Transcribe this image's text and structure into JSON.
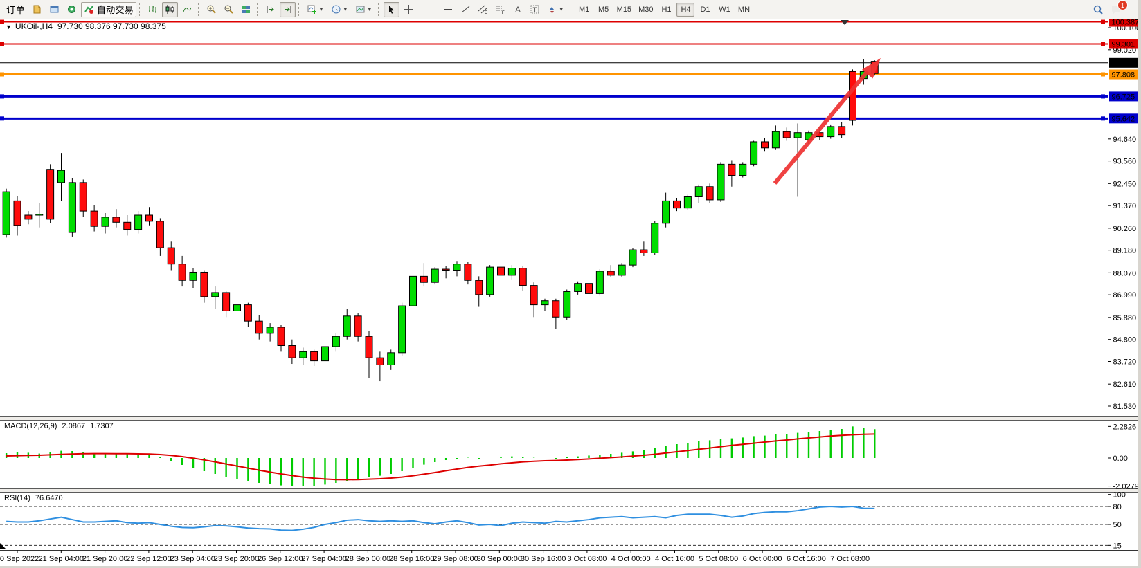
{
  "toolbar": {
    "order_label": "订单",
    "autotrade_label": "自动交易",
    "timeframes": [
      "M1",
      "M5",
      "M15",
      "M30",
      "H1",
      "H4",
      "D1",
      "W1",
      "MN"
    ],
    "active_timeframe": "H4",
    "notification_count": "1"
  },
  "chart": {
    "header": {
      "symbol": "UKOil-,H4",
      "ohlc": "97.730 98.376 97.730 98.375"
    },
    "price_ticks": [
      "100.100",
      "99.020",
      "94.640",
      "93.560",
      "92.450",
      "91.370",
      "90.260",
      "89.180",
      "88.070",
      "86.990",
      "85.880",
      "84.800",
      "83.720",
      "82.610",
      "81.530"
    ],
    "levels": [
      {
        "price": 100.387,
        "label": "100.387",
        "color": "#dd0000",
        "width": 2,
        "handles": true
      },
      {
        "price": 99.301,
        "label": "99.301",
        "color": "#dd0000",
        "width": 2,
        "handles": true
      },
      {
        "price": 98.375,
        "label": "98.375",
        "color": "#000000",
        "width": 1,
        "handles": false
      },
      {
        "price": 97.808,
        "label": "97.808",
        "color": "#ff9400",
        "width": 3,
        "handles": true
      },
      {
        "price": 96.725,
        "label": "96.725",
        "color": "#0000cc",
        "width": 3,
        "handles": true
      },
      {
        "price": 95.642,
        "label": "95.642",
        "color": "#0000cc",
        "width": 3,
        "handles": true
      }
    ],
    "time_labels": [
      "20 Sep 2022",
      "21 Sep 04:00",
      "21 Sep 20:00",
      "22 Sep 12:00",
      "23 Sep 04:00",
      "23 Sep 20:00",
      "26 Sep 12:00",
      "27 Sep 04:00",
      "28 Sep 00:00",
      "28 Sep 16:00",
      "29 Sep 08:00",
      "30 Sep 00:00",
      "30 Sep 16:00",
      "3 Oct 08:00",
      "4 Oct 00:00",
      "4 Oct 16:00",
      "5 Oct 08:00",
      "6 Oct 00:00",
      "6 Oct 16:00",
      "7 Oct 08:00"
    ]
  },
  "chart_data": {
    "type": "candlestick",
    "title": "UKOil- H4",
    "symbol": "UKOil-",
    "timeframe": "H4",
    "current_ohlc": {
      "open": 97.73,
      "high": 98.376,
      "low": 97.73,
      "close": 98.375
    },
    "y_range": [
      81.0,
      100.5
    ],
    "up_color": "#00dd00",
    "down_color": "#ff0c0c",
    "candle_format": [
      "time",
      "open",
      "high",
      "low",
      "close"
    ],
    "candles": [
      [
        "20 Sep 08:00",
        89.95,
        92.2,
        89.8,
        92.05
      ],
      [
        "20 Sep 12:00",
        91.6,
        91.85,
        89.9,
        90.4
      ],
      [
        "20 Sep 16:00",
        90.9,
        91.1,
        90.45,
        90.7
      ],
      [
        "20 Sep 20:00",
        90.9,
        91.5,
        90.3,
        90.95
      ],
      [
        "21 Sep 00:00",
        93.15,
        93.4,
        90.5,
        90.7
      ],
      [
        "21 Sep 04:00",
        92.5,
        93.95,
        91.6,
        93.1
      ],
      [
        "21 Sep 08:00",
        90.05,
        92.7,
        89.85,
        92.5
      ],
      [
        "21 Sep 12:00",
        92.5,
        92.65,
        90.8,
        91.1
      ],
      [
        "21 Sep 16:00",
        91.1,
        91.4,
        90.1,
        90.35
      ],
      [
        "21 Sep 20:00",
        90.35,
        91.0,
        90.0,
        90.8
      ],
      [
        "22 Sep 00:00",
        90.8,
        91.2,
        90.3,
        90.55
      ],
      [
        "22 Sep 04:00",
        90.55,
        90.9,
        89.9,
        90.2
      ],
      [
        "22 Sep 08:00",
        90.2,
        91.1,
        90.0,
        90.9
      ],
      [
        "22 Sep 12:00",
        90.9,
        91.3,
        90.4,
        90.6
      ],
      [
        "22 Sep 16:00",
        90.6,
        90.75,
        88.9,
        89.3
      ],
      [
        "22 Sep 20:00",
        89.3,
        89.6,
        88.2,
        88.5
      ],
      [
        "23 Sep 00:00",
        88.5,
        88.9,
        87.4,
        87.7
      ],
      [
        "23 Sep 04:00",
        87.7,
        88.3,
        87.3,
        88.1
      ],
      [
        "23 Sep 08:00",
        88.1,
        88.2,
        86.6,
        86.9
      ],
      [
        "23 Sep 12:00",
        86.9,
        87.4,
        86.3,
        87.1
      ],
      [
        "23 Sep 16:00",
        87.1,
        87.2,
        85.9,
        86.2
      ],
      [
        "23 Sep 20:00",
        86.2,
        86.8,
        85.6,
        86.5
      ],
      [
        "25 Sep 20:00",
        86.5,
        86.6,
        85.4,
        85.7
      ],
      [
        "26 Sep 00:00",
        85.7,
        86.0,
        84.8,
        85.1
      ],
      [
        "26 Sep 04:00",
        85.1,
        85.6,
        84.7,
        85.4
      ],
      [
        "26 Sep 08:00",
        85.4,
        85.5,
        84.2,
        84.5
      ],
      [
        "26 Sep 12:00",
        84.5,
        84.8,
        83.6,
        83.9
      ],
      [
        "26 Sep 16:00",
        83.9,
        84.4,
        83.55,
        84.2
      ],
      [
        "26 Sep 20:00",
        84.2,
        84.3,
        83.5,
        83.75
      ],
      [
        "27 Sep 00:00",
        83.75,
        84.6,
        83.6,
        84.45
      ],
      [
        "27 Sep 04:00",
        84.45,
        85.1,
        84.2,
        84.95
      ],
      [
        "27 Sep 08:00",
        84.95,
        86.3,
        84.8,
        85.95
      ],
      [
        "27 Sep 12:00",
        85.95,
        86.1,
        84.7,
        84.95
      ],
      [
        "27 Sep 16:00",
        84.95,
        85.2,
        82.9,
        83.9
      ],
      [
        "27 Sep 20:00",
        83.9,
        84.2,
        82.75,
        83.55
      ],
      [
        "28 Sep 00:00",
        83.55,
        84.3,
        83.3,
        84.15
      ],
      [
        "28 Sep 04:00",
        84.15,
        86.6,
        84.0,
        86.45
      ],
      [
        "28 Sep 08:00",
        86.45,
        88.0,
        86.3,
        87.9
      ],
      [
        "28 Sep 12:00",
        87.9,
        88.55,
        87.4,
        87.6
      ],
      [
        "28 Sep 16:00",
        87.6,
        88.35,
        87.5,
        88.25
      ],
      [
        "28 Sep 20:00",
        88.25,
        88.4,
        87.8,
        88.2
      ],
      [
        "29 Sep 00:00",
        88.2,
        88.65,
        87.9,
        88.5
      ],
      [
        "29 Sep 04:00",
        88.5,
        88.6,
        87.5,
        87.7
      ],
      [
        "29 Sep 08:00",
        87.7,
        87.9,
        86.4,
        87.0
      ],
      [
        "29 Sep 12:00",
        87.0,
        88.45,
        86.9,
        88.35
      ],
      [
        "29 Sep 16:00",
        88.35,
        88.5,
        87.7,
        87.95
      ],
      [
        "29 Sep 20:00",
        87.95,
        88.45,
        87.75,
        88.3
      ],
      [
        "30 Sep 00:00",
        88.3,
        88.4,
        87.2,
        87.45
      ],
      [
        "30 Sep 04:00",
        87.45,
        87.6,
        85.9,
        86.5
      ],
      [
        "30 Sep 08:00",
        86.5,
        86.8,
        86.2,
        86.7
      ],
      [
        "30 Sep 12:00",
        86.7,
        86.8,
        85.3,
        85.9
      ],
      [
        "30 Sep 16:00",
        85.9,
        87.25,
        85.75,
        87.15
      ],
      [
        "30 Sep 20:00",
        87.15,
        87.65,
        87.0,
        87.55
      ],
      [
        "2 Oct 20:00",
        87.55,
        87.6,
        86.9,
        87.05
      ],
      [
        "3 Oct 00:00",
        87.05,
        88.25,
        86.95,
        88.15
      ],
      [
        "3 Oct 04:00",
        88.15,
        88.45,
        87.85,
        87.95
      ],
      [
        "3 Oct 08:00",
        87.95,
        88.55,
        87.85,
        88.45
      ],
      [
        "3 Oct 12:00",
        88.45,
        89.3,
        88.35,
        89.2
      ],
      [
        "3 Oct 16:00",
        89.2,
        89.6,
        88.9,
        89.05
      ],
      [
        "3 Oct 20:00",
        89.05,
        90.6,
        88.95,
        90.5
      ],
      [
        "4 Oct 00:00",
        90.5,
        92.0,
        90.3,
        91.6
      ],
      [
        "4 Oct 04:00",
        91.6,
        91.75,
        91.1,
        91.25
      ],
      [
        "4 Oct 08:00",
        91.25,
        91.9,
        91.15,
        91.8
      ],
      [
        "4 Oct 12:00",
        91.8,
        92.4,
        91.5,
        92.3
      ],
      [
        "4 Oct 16:00",
        92.3,
        92.45,
        91.5,
        91.65
      ],
      [
        "4 Oct 20:00",
        91.65,
        93.5,
        91.55,
        93.4
      ],
      [
        "5 Oct 00:00",
        93.4,
        93.6,
        92.3,
        92.85
      ],
      [
        "5 Oct 04:00",
        92.85,
        93.5,
        92.75,
        93.4
      ],
      [
        "5 Oct 08:00",
        93.4,
        94.55,
        93.3,
        94.5
      ],
      [
        "5 Oct 12:00",
        94.5,
        94.7,
        94.05,
        94.2
      ],
      [
        "5 Oct 16:00",
        94.2,
        95.3,
        94.1,
        95.0
      ],
      [
        "5 Oct 20:00",
        95.0,
        95.2,
        94.55,
        94.7
      ],
      [
        "6 Oct 00:00",
        94.7,
        95.4,
        91.8,
        94.95
      ],
      [
        "6 Oct 04:00",
        94.6,
        95.05,
        94.4,
        94.95
      ],
      [
        "6 Oct 08:00",
        94.95,
        95.25,
        94.6,
        94.75
      ],
      [
        "6 Oct 12:00",
        94.75,
        95.35,
        94.65,
        95.25
      ],
      [
        "6 Oct 16:00",
        95.25,
        95.45,
        94.7,
        94.85
      ],
      [
        "6 Oct 20:00",
        97.95,
        98.05,
        95.3,
        95.55
      ],
      [
        "7 Oct 00:00",
        97.6,
        98.55,
        97.3,
        97.95
      ],
      [
        "7 Oct 04:00",
        98.45,
        98.5,
        97.75,
        97.85
      ]
    ]
  },
  "macd": {
    "name": "MACD(12,26,9)",
    "value_main": "2.0867",
    "value_signal": "1.7307",
    "histogram_color": "#00cc00",
    "signal_color": "#dd0000",
    "scale": [
      {
        "label": "2.2826",
        "value": 2.2826
      },
      {
        "label": "0.00",
        "value": 0
      },
      {
        "label": "-2.0279",
        "value": -2.0279
      }
    ],
    "histogram": [
      0.35,
      0.4,
      0.38,
      0.32,
      0.45,
      0.52,
      0.5,
      0.42,
      0.35,
      0.3,
      0.32,
      0.28,
      0.25,
      0.2,
      0.05,
      -0.2,
      -0.5,
      -0.7,
      -0.95,
      -1.15,
      -1.35,
      -1.5,
      -1.65,
      -1.8,
      -1.9,
      -1.98,
      -2.0279,
      -2.02,
      -2.0,
      -1.92,
      -1.8,
      -1.65,
      -1.5,
      -1.38,
      -1.28,
      -1.15,
      -0.95,
      -0.7,
      -0.48,
      -0.3,
      -0.15,
      -0.05,
      0.02,
      -0.05,
      0.0,
      0.08,
      0.12,
      0.1,
      0.02,
      0.0,
      -0.05,
      0.05,
      0.12,
      0.18,
      0.25,
      0.3,
      0.38,
      0.48,
      0.55,
      0.7,
      0.9,
      1.0,
      1.1,
      1.2,
      1.28,
      1.4,
      1.42,
      1.48,
      1.58,
      1.62,
      1.7,
      1.75,
      1.82,
      1.88,
      1.95,
      2.0,
      2.1,
      2.2826,
      2.2,
      2.0867
    ],
    "signal": [
      0.15,
      0.17,
      0.19,
      0.2,
      0.23,
      0.26,
      0.29,
      0.31,
      0.32,
      0.32,
      0.31,
      0.31,
      0.3,
      0.29,
      0.25,
      0.19,
      0.1,
      -0.01,
      -0.14,
      -0.28,
      -0.43,
      -0.58,
      -0.73,
      -0.88,
      -1.02,
      -1.15,
      -1.27,
      -1.38,
      -1.46,
      -1.52,
      -1.56,
      -1.57,
      -1.56,
      -1.53,
      -1.5,
      -1.45,
      -1.38,
      -1.28,
      -1.17,
      -1.05,
      -0.92,
      -0.8,
      -0.68,
      -0.59,
      -0.51,
      -0.42,
      -0.35,
      -0.28,
      -0.24,
      -0.2,
      -0.18,
      -0.15,
      -0.11,
      -0.07,
      -0.02,
      0.03,
      0.08,
      0.14,
      0.2,
      0.27,
      0.36,
      0.45,
      0.54,
      0.63,
      0.72,
      0.82,
      0.91,
      0.99,
      1.07,
      1.15,
      1.23,
      1.3,
      1.38,
      1.45,
      1.52,
      1.59,
      1.64,
      1.68,
      1.71,
      1.7307
    ]
  },
  "rsi": {
    "name": "RSI(14)",
    "value": "76.6470",
    "line_color": "#2f8fe0",
    "scale": [
      {
        "label": "100",
        "value": 100
      },
      {
        "label": "80",
        "value": 80
      },
      {
        "label": "50",
        "value": 50
      },
      {
        "label": "15",
        "value": 15
      }
    ],
    "dashed_levels": [
      80,
      50,
      15
    ],
    "points": [
      55,
      54,
      54,
      56,
      59,
      62,
      58,
      54,
      54,
      55,
      56,
      53,
      52,
      53,
      50,
      47,
      45,
      44.5,
      46,
      48,
      47.5,
      46,
      44,
      43,
      42.5,
      40.5,
      40,
      42,
      45,
      50,
      53,
      57,
      58,
      56,
      55,
      56,
      55,
      56,
      53,
      51,
      54,
      56,
      53,
      49,
      50,
      48,
      52,
      54,
      53,
      52,
      55,
      54,
      56,
      58,
      61,
      62,
      63,
      61,
      62,
      63,
      61,
      65,
      67,
      67,
      67,
      65,
      62,
      64,
      68,
      70,
      71,
      71,
      73,
      76,
      79,
      80,
      79,
      80,
      77,
      76.647
    ]
  },
  "annotation": {
    "type": "trend-arrow",
    "color": "#ee3333"
  }
}
